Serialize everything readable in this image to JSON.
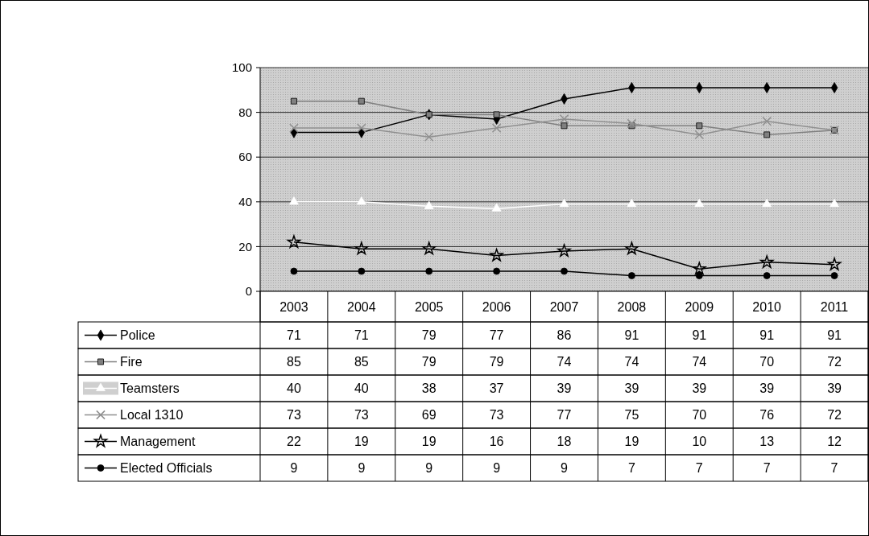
{
  "chart_data": {
    "type": "line",
    "categories": [
      "2003",
      "2004",
      "2005",
      "2006",
      "2007",
      "2008",
      "2009",
      "2010",
      "2011"
    ],
    "ylim": [
      0,
      100
    ],
    "yticks": [
      0,
      20,
      40,
      60,
      80,
      100
    ],
    "grid": "y",
    "legend": "bottom",
    "data_labels": true,
    "series": [
      {
        "name": "Police",
        "color": "#000000",
        "marker": "diamond",
        "values": [
          71,
          71,
          79,
          77,
          86,
          91,
          91,
          91,
          91
        ]
      },
      {
        "name": "Fire",
        "color": "#808080",
        "marker": "square",
        "values": [
          85,
          85,
          79,
          79,
          74,
          74,
          74,
          70,
          72
        ]
      },
      {
        "name": "Teamsters",
        "color": "#ffffff",
        "marker": "triangle",
        "values": [
          40,
          40,
          38,
          37,
          39,
          39,
          39,
          39,
          39
        ]
      },
      {
        "name": "Local 1310",
        "color": "#909090",
        "marker": "cross",
        "values": [
          73,
          73,
          69,
          73,
          77,
          75,
          70,
          76,
          72
        ]
      },
      {
        "name": "Management",
        "color": "#000000",
        "marker": "star",
        "values": [
          22,
          19,
          19,
          16,
          18,
          19,
          10,
          13,
          12
        ]
      },
      {
        "name": "Elected Officials",
        "color": "#000000",
        "marker": "circle",
        "values": [
          9,
          9,
          9,
          9,
          9,
          7,
          7,
          7,
          7
        ]
      }
    ]
  }
}
